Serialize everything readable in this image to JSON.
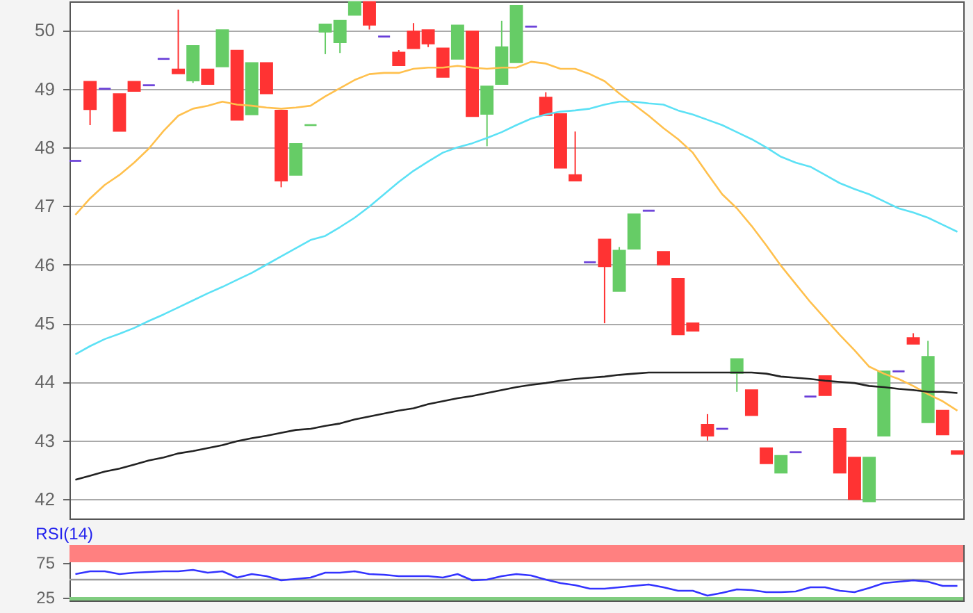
{
  "chart_data": [
    {
      "type": "candlestick",
      "categories": [
        null,
        null,
        null,
        null,
        null,
        null,
        null,
        null,
        null,
        null,
        null,
        null,
        null,
        null,
        null,
        null,
        null,
        null,
        null,
        null,
        null,
        null,
        null,
        null,
        null,
        null,
        null,
        null,
        null,
        null,
        null,
        null,
        null,
        null,
        null,
        null,
        null,
        null,
        null,
        null,
        null,
        null,
        null,
        null,
        null,
        null,
        null,
        null,
        null,
        null,
        null,
        null,
        null,
        null,
        null,
        null,
        null,
        null,
        null,
        null,
        null
      ],
      "ohlc": [
        [
          47.77,
          47.77,
          47.77,
          47.77
        ],
        [
          49.12,
          49.12,
          48.38,
          48.65
        ],
        [
          49.0,
          49.0,
          49.0,
          49.0
        ],
        [
          48.91,
          48.91,
          48.28,
          48.28
        ],
        [
          49.12,
          49.12,
          48.96,
          48.96
        ],
        [
          49.06,
          49.06,
          49.06,
          49.06
        ],
        [
          49.51,
          49.51,
          49.51,
          49.51
        ],
        [
          49.33,
          50.35,
          49.26,
          49.26
        ],
        [
          49.14,
          49.73,
          49.1,
          49.73
        ],
        [
          49.33,
          49.33,
          49.08,
          49.08
        ],
        [
          49.38,
          50.0,
          49.38,
          50.0
        ],
        [
          49.65,
          49.65,
          48.47,
          48.47
        ],
        [
          48.56,
          49.44,
          48.56,
          49.44
        ],
        [
          49.44,
          49.44,
          48.92,
          48.92
        ],
        [
          48.63,
          48.63,
          47.32,
          47.43
        ],
        [
          47.53,
          48.06,
          47.53,
          48.06
        ],
        [
          48.38,
          48.38,
          48.38,
          48.38
        ],
        [
          49.97,
          50.1,
          49.59,
          50.1
        ],
        [
          49.79,
          50.16,
          49.61,
          50.16
        ],
        [
          50.26,
          50.48,
          50.26,
          50.48
        ],
        [
          50.48,
          50.48,
          50.01,
          50.09
        ],
        [
          49.89,
          49.89,
          49.89,
          49.89
        ],
        [
          49.62,
          49.66,
          49.4,
          49.4
        ],
        [
          49.98,
          50.12,
          49.69,
          49.69
        ],
        [
          50.0,
          50.0,
          49.71,
          49.77
        ],
        [
          49.69,
          49.69,
          49.2,
          49.2
        ],
        [
          49.51,
          50.08,
          49.51,
          50.08
        ],
        [
          49.98,
          49.98,
          48.53,
          48.53
        ],
        [
          48.57,
          49.04,
          48.02,
          49.04
        ],
        [
          49.08,
          50.16,
          49.08,
          49.71
        ],
        [
          49.45,
          50.42,
          49.45,
          50.42
        ],
        [
          50.06,
          50.06,
          50.06,
          50.06
        ],
        [
          48.85,
          48.94,
          48.55,
          48.55
        ],
        [
          48.57,
          48.57,
          47.65,
          47.65
        ],
        [
          47.53,
          48.27,
          47.43,
          47.43
        ],
        [
          46.04,
          46.04,
          46.04,
          46.04
        ],
        [
          46.43,
          46.43,
          45.0,
          45.97
        ],
        [
          45.55,
          46.3,
          45.55,
          46.24
        ],
        [
          46.27,
          46.86,
          46.27,
          46.86
        ],
        [
          46.92,
          46.92,
          46.92,
          46.92
        ],
        [
          46.22,
          46.22,
          46.0,
          46.0
        ],
        [
          45.76,
          45.76,
          44.81,
          44.81
        ],
        [
          45.0,
          45.0,
          44.87,
          44.87
        ],
        [
          43.27,
          43.45,
          43.0,
          43.08
        ],
        [
          43.2,
          43.2,
          43.2,
          43.2
        ],
        [
          44.15,
          44.39,
          43.83,
          44.39
        ],
        [
          43.86,
          43.86,
          43.43,
          43.43
        ],
        [
          42.87,
          42.87,
          42.61,
          42.61
        ],
        [
          42.45,
          42.74,
          42.45,
          42.74
        ],
        [
          42.8,
          42.8,
          42.8,
          42.8
        ],
        [
          43.75,
          43.75,
          43.75,
          43.75
        ],
        [
          44.1,
          44.1,
          43.77,
          43.77
        ],
        [
          43.2,
          43.2,
          42.45,
          42.45
        ],
        [
          42.71,
          42.71,
          42.0,
          42.0
        ],
        [
          41.96,
          42.71,
          41.96,
          42.71
        ],
        [
          43.08,
          44.18,
          43.08,
          44.18
        ],
        [
          44.18,
          44.18,
          44.18,
          44.18
        ],
        [
          44.75,
          44.83,
          44.65,
          44.65
        ],
        [
          43.31,
          44.7,
          43.31,
          44.43
        ],
        [
          43.51,
          43.51,
          43.1,
          43.1
        ],
        [
          42.82,
          42.82,
          42.77,
          42.77
        ]
      ],
      "colors": [
        "#6a3fd8",
        "#ff3333",
        "#6a3fd8",
        "#ff3333",
        "#ff3333",
        "#6a3fd8",
        "#6a3fd8",
        "#ff3333",
        "#66cc66",
        "#ff3333",
        "#66cc66",
        "#ff3333",
        "#66cc66",
        "#ff3333",
        "#ff3333",
        "#66cc66",
        "#66cc66",
        "#66cc66",
        "#66cc66",
        "#66cc66",
        "#ff3333",
        "#6a3fd8",
        "#ff3333",
        "#ff3333",
        "#ff3333",
        "#ff3333",
        "#66cc66",
        "#ff3333",
        "#66cc66",
        "#66cc66",
        "#66cc66",
        "#6a3fd8",
        "#ff3333",
        "#ff3333",
        "#ff3333",
        "#6a3fd8",
        "#ff3333",
        "#66cc66",
        "#66cc66",
        "#6a3fd8",
        "#ff3333",
        "#ff3333",
        "#ff3333",
        "#ff3333",
        "#6a3fd8",
        "#66cc66",
        "#ff3333",
        "#ff3333",
        "#66cc66",
        "#6a3fd8",
        "#6a3fd8",
        "#ff3333",
        "#ff3333",
        "#ff3333",
        "#66cc66",
        "#66cc66",
        "#6a3fd8",
        "#ff3333",
        "#66cc66",
        "#ff3333",
        "#ff3333"
      ],
      "series": [
        {
          "type": "line",
          "color": "#ffc04d",
          "values": [
            46.85,
            47.13,
            47.36,
            47.53,
            47.74,
            47.98,
            48.28,
            48.54,
            48.66,
            48.71,
            48.78,
            48.73,
            48.71,
            48.68,
            48.66,
            48.68,
            48.71,
            48.87,
            49.01,
            49.15,
            49.25,
            49.27,
            49.27,
            49.34,
            49.36,
            49.36,
            49.39,
            49.36,
            49.34,
            49.36,
            49.36,
            49.46,
            49.43,
            49.34,
            49.34,
            49.25,
            49.13,
            48.92,
            48.73,
            48.54,
            48.33,
            48.14,
            47.91,
            47.55,
            47.2,
            46.96,
            46.66,
            46.33,
            45.98,
            45.67,
            45.36,
            45.08,
            44.8,
            44.54,
            44.26,
            44.14,
            44.05,
            43.93,
            43.79,
            43.67,
            43.51
          ]
        },
        {
          "type": "line",
          "color": "#5ce1f5",
          "values": [
            44.47,
            44.61,
            44.73,
            44.82,
            44.92,
            45.04,
            45.15,
            45.27,
            45.39,
            45.51,
            45.62,
            45.74,
            45.86,
            46.0,
            46.14,
            46.28,
            46.42,
            46.49,
            46.64,
            46.8,
            46.99,
            47.2,
            47.41,
            47.6,
            47.76,
            47.91,
            48.0,
            48.07,
            48.16,
            48.26,
            48.38,
            48.49,
            48.56,
            48.61,
            48.63,
            48.66,
            48.73,
            48.78,
            48.78,
            48.75,
            48.73,
            48.63,
            48.56,
            48.47,
            48.38,
            48.26,
            48.14,
            48.0,
            47.84,
            47.74,
            47.67,
            47.53,
            47.39,
            47.29,
            47.2,
            47.08,
            46.96,
            46.89,
            46.8,
            46.68,
            46.56
          ]
        },
        {
          "type": "line",
          "color": "#222222",
          "values": [
            42.33,
            42.4,
            42.47,
            42.52,
            42.59,
            42.66,
            42.71,
            42.78,
            42.82,
            42.87,
            42.92,
            42.99,
            43.04,
            43.08,
            43.13,
            43.18,
            43.2,
            43.25,
            43.29,
            43.36,
            43.41,
            43.46,
            43.51,
            43.55,
            43.62,
            43.67,
            43.72,
            43.76,
            43.81,
            43.86,
            43.91,
            43.95,
            43.98,
            44.02,
            44.05,
            44.07,
            44.09,
            44.12,
            44.14,
            44.16,
            44.16,
            44.16,
            44.16,
            44.16,
            44.16,
            44.16,
            44.16,
            44.14,
            44.09,
            44.07,
            44.05,
            44.02,
            44.0,
            43.98,
            43.93,
            43.91,
            43.88,
            43.86,
            43.83,
            43.83,
            43.81
          ]
        }
      ],
      "ylim": [
        41.67,
        50.49
      ],
      "yticks": [
        42,
        43,
        44,
        45,
        46,
        47,
        48,
        49,
        50
      ],
      "grid": "y"
    },
    {
      "type": "line",
      "title": "RSI(14)",
      "categories": [
        null,
        null,
        null,
        null,
        null,
        null,
        null,
        null,
        null,
        null,
        null,
        null,
        null,
        null,
        null,
        null,
        null,
        null,
        null,
        null,
        null,
        null,
        null,
        null,
        null,
        null,
        null,
        null,
        null,
        null,
        null,
        null,
        null,
        null,
        null,
        null,
        null,
        null,
        null,
        null,
        null,
        null,
        null,
        null,
        null,
        null,
        null,
        null,
        null,
        null,
        null,
        null,
        null,
        null,
        null,
        null,
        null,
        null,
        null,
        null,
        null
      ],
      "series": [
        {
          "color": "#3333ff",
          "values": [
            58,
            62,
            62,
            58,
            60,
            61,
            62,
            62,
            64,
            60,
            62,
            53,
            58,
            55,
            49,
            51,
            53,
            60,
            60,
            62,
            58,
            57,
            55,
            55,
            55,
            53,
            58,
            49,
            50,
            55,
            58,
            56,
            50,
            45,
            42,
            37,
            37,
            39,
            41,
            43,
            39,
            34,
            34,
            27,
            31,
            36,
            35,
            32,
            32,
            33,
            39,
            39,
            34,
            32,
            38,
            45,
            47,
            49,
            47,
            41,
            41
          ]
        }
      ],
      "ylim": [
        20,
        100
      ],
      "yticks": [
        25,
        75
      ],
      "bands": [
        {
          "axis": "y",
          "from": 75,
          "to": 100,
          "color": "#ff8080"
        },
        {
          "axis": "y",
          "from": 20,
          "to": 25,
          "color": "#80cc80"
        }
      ],
      "ref_lines": [
        {
          "axis": "y",
          "value": 50,
          "color": "#999999"
        }
      ]
    }
  ]
}
